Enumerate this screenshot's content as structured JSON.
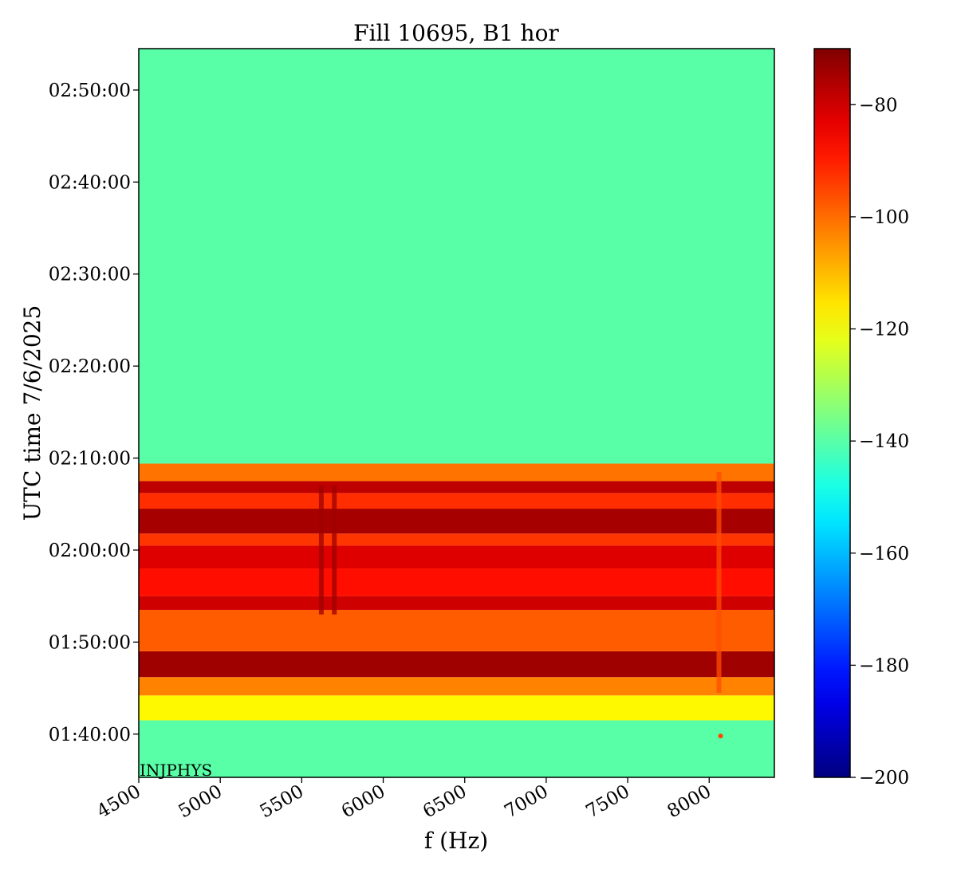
{
  "chart_data": {
    "type": "heatmap",
    "title": "Fill 10695, B1 hor",
    "xlabel": "f (Hz)",
    "ylabel": "UTC time 7/6/2025",
    "xlim": [
      4500,
      8400
    ],
    "ylim_minutes": [
      95.3,
      174.5
    ],
    "x_ticks": [
      4500,
      5000,
      5500,
      6000,
      6500,
      7000,
      7500,
      8000
    ],
    "y_ticks": [
      "01:40:00",
      "01:50:00",
      "02:00:00",
      "02:10:00",
      "02:20:00",
      "02:30:00",
      "02:40:00",
      "02:50:00"
    ],
    "y_ticks_minutes": [
      100,
      110,
      120,
      130,
      140,
      150,
      160,
      170
    ],
    "colorbar": {
      "colormap": "jet",
      "range": [
        -200,
        -70
      ],
      "ticks": [
        -80,
        -100,
        -120,
        -140,
        -160,
        -180,
        -200
      ]
    },
    "background_level": -140,
    "bands": [
      {
        "t0": 95.3,
        "t1": 101.5,
        "level": -140
      },
      {
        "t0": 101.5,
        "t1": 104.2,
        "level": -118
      },
      {
        "t0": 104.2,
        "t1": 106.2,
        "level": -103
      },
      {
        "t0": 106.2,
        "t1": 109.0,
        "level": -74
      },
      {
        "t0": 109.0,
        "t1": 113.5,
        "level": -98
      },
      {
        "t0": 113.5,
        "t1": 115.0,
        "level": -80
      },
      {
        "t0": 115.0,
        "t1": 118.0,
        "level": -88
      },
      {
        "t0": 118.0,
        "t1": 120.5,
        "level": -82
      },
      {
        "t0": 120.5,
        "t1": 121.8,
        "level": -93
      },
      {
        "t0": 121.8,
        "t1": 124.5,
        "level": -75
      },
      {
        "t0": 124.5,
        "t1": 126.2,
        "level": -92
      },
      {
        "t0": 126.2,
        "t1": 127.5,
        "level": -78
      },
      {
        "t0": 127.5,
        "t1": 129.4,
        "level": -101
      },
      {
        "t0": 129.4,
        "t1": 174.5,
        "level": -140
      }
    ],
    "bright_columns": [
      {
        "f": 5620,
        "t0": 113.0,
        "t1": 127.0,
        "level": -74
      },
      {
        "f": 5700,
        "t0": 113.0,
        "t1": 127.0,
        "level": -74
      },
      {
        "f": 8060,
        "t0": 104.5,
        "t1": 128.5,
        "level": -96
      }
    ],
    "spot": {
      "f": 8070,
      "t": 99.8,
      "level": -95
    },
    "annotation": "INJPHYS"
  }
}
